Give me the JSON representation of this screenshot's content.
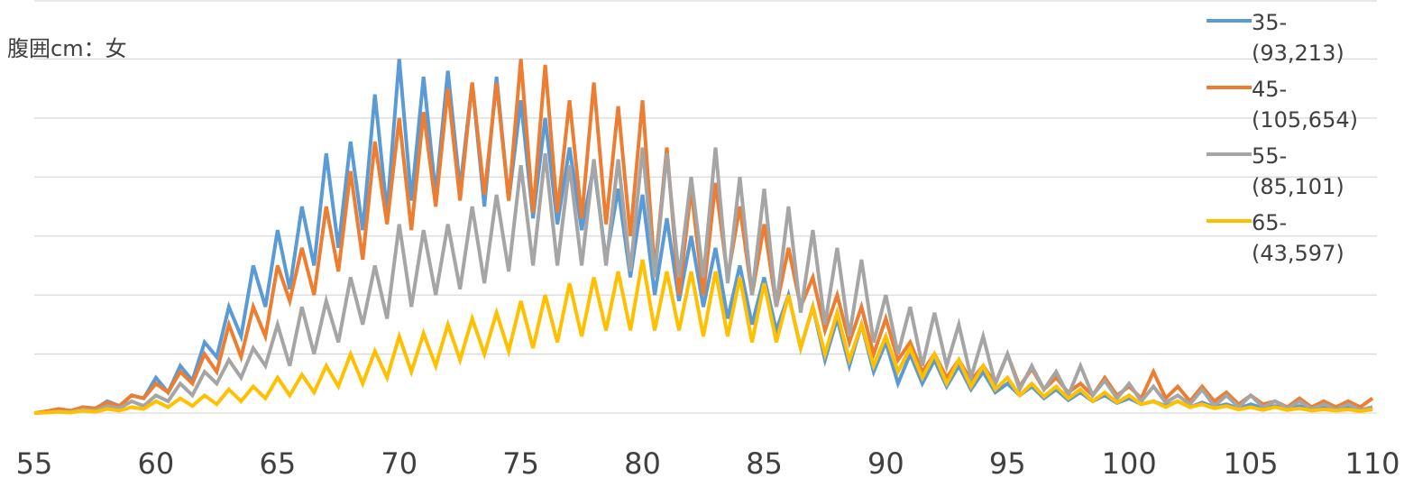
{
  "chart_data": {
    "type": "line",
    "title": "腹囲cm：女",
    "x": [
      55,
      55.5,
      56,
      56.5,
      57,
      57.5,
      58,
      58.5,
      59,
      59.5,
      60,
      60.5,
      61,
      61.5,
      62,
      62.5,
      63,
      63.5,
      64,
      64.5,
      65,
      65.5,
      66,
      66.5,
      67,
      67.5,
      68,
      68.5,
      69,
      69.5,
      70,
      70.5,
      71,
      71.5,
      72,
      72.5,
      73,
      73.5,
      74,
      74.5,
      75,
      75.5,
      76,
      76.5,
      77,
      77.5,
      78,
      78.5,
      79,
      79.5,
      80,
      80.5,
      81,
      81.5,
      82,
      82.5,
      83,
      83.5,
      84,
      84.5,
      85,
      85.5,
      86,
      86.5,
      87,
      87.5,
      88,
      88.5,
      89,
      89.5,
      90,
      90.5,
      91,
      91.5,
      92,
      92.5,
      93,
      93.5,
      94,
      94.5,
      95,
      95.5,
      96,
      96.5,
      97,
      97.5,
      98,
      98.5,
      99,
      99.5,
      100,
      100.5,
      101,
      101.5,
      102,
      102.5,
      103,
      103.5,
      104,
      104.5,
      105,
      105.5,
      106,
      106.5,
      107,
      107.5,
      108,
      108.5,
      109,
      109.5,
      110
    ],
    "series": [
      {
        "name": "35- (93,213)",
        "color": "#5b9bd5",
        "values": [
          0,
          0.02,
          0.05,
          0.03,
          0.1,
          0.07,
          0.2,
          0.12,
          0.3,
          0.25,
          0.6,
          0.35,
          0.8,
          0.55,
          1.2,
          0.95,
          1.8,
          1.3,
          2.5,
          1.8,
          3.1,
          2.1,
          3.5,
          2.5,
          4.4,
          2.8,
          4.6,
          3.1,
          5.4,
          3.4,
          6.0,
          3.6,
          5.7,
          3.7,
          5.8,
          3.8,
          5.6,
          3.5,
          5.7,
          3.6,
          5.3,
          3.3,
          5.0,
          3.2,
          4.5,
          3.1,
          4.2,
          2.6,
          3.8,
          2.3,
          3.7,
          2.0,
          3.3,
          1.9,
          3.0,
          1.8,
          2.8,
          1.6,
          2.5,
          1.5,
          2.3,
          1.4,
          2.0,
          1.1,
          1.8,
          0.9,
          1.6,
          0.8,
          1.5,
          0.7,
          1.2,
          0.5,
          1.0,
          0.5,
          0.9,
          0.45,
          0.8,
          0.4,
          0.7,
          0.35,
          0.5,
          0.3,
          0.45,
          0.25,
          0.4,
          0.22,
          0.35,
          0.2,
          0.3,
          0.17,
          0.25,
          0.15,
          0.2,
          0.12,
          0.2,
          0.1,
          0.18,
          0.1,
          0.15,
          0.08,
          0.15,
          0.08,
          0.12,
          0.07,
          0.12,
          0.06,
          0.1,
          0.06,
          0.1,
          0.05,
          0.1
        ]
      },
      {
        "name": "45- (105,654)",
        "color": "#ed7d31",
        "values": [
          0,
          0.03,
          0.07,
          0.04,
          0.1,
          0.08,
          0.18,
          0.12,
          0.3,
          0.25,
          0.5,
          0.35,
          0.7,
          0.5,
          1.0,
          0.7,
          1.5,
          0.95,
          1.8,
          1.3,
          2.5,
          1.9,
          2.8,
          2.0,
          3.5,
          2.4,
          4.1,
          2.6,
          4.6,
          3.2,
          5.0,
          3.1,
          5.1,
          3.5,
          5.5,
          3.6,
          5.6,
          3.7,
          5.6,
          3.6,
          6.0,
          3.4,
          5.9,
          3.4,
          5.3,
          3.3,
          5.6,
          3.2,
          5.2,
          3.0,
          5.3,
          2.4,
          4.5,
          2.0,
          3.8,
          2.0,
          3.9,
          2.3,
          3.5,
          2.0,
          3.2,
          1.8,
          2.8,
          1.8,
          2.3,
          1.4,
          2.0,
          1.2,
          1.8,
          1.0,
          1.6,
          0.9,
          1.2,
          0.7,
          1.0,
          0.6,
          0.9,
          0.55,
          0.8,
          0.5,
          1.0,
          0.45,
          0.75,
          0.4,
          0.6,
          0.35,
          0.5,
          0.3,
          0.6,
          0.3,
          0.45,
          0.25,
          0.7,
          0.25,
          0.45,
          0.2,
          0.45,
          0.2,
          0.35,
          0.15,
          0.3,
          0.15,
          0.2,
          0.1,
          0.25,
          0.1,
          0.2,
          0.1,
          0.2,
          0.1,
          0.25
        ]
      },
      {
        "name": "55- (85,101)",
        "color": "#a5a5a5",
        "values": [
          0,
          0.01,
          0.03,
          0.02,
          0.06,
          0.04,
          0.12,
          0.08,
          0.2,
          0.12,
          0.3,
          0.2,
          0.5,
          0.3,
          0.7,
          0.5,
          0.9,
          0.6,
          1.1,
          0.8,
          1.5,
          0.8,
          1.8,
          1.0,
          1.9,
          1.2,
          2.3,
          1.5,
          2.5,
          1.6,
          3.2,
          1.8,
          3.1,
          2.0,
          3.2,
          2.1,
          3.5,
          2.2,
          3.7,
          2.4,
          4.2,
          2.5,
          4.4,
          2.5,
          4.2,
          2.5,
          4.3,
          2.5,
          4.3,
          2.4,
          4.5,
          2.3,
          4.4,
          2.3,
          4.0,
          2.3,
          4.5,
          2.2,
          4.0,
          2.0,
          3.8,
          1.8,
          3.5,
          1.7,
          3.1,
          1.5,
          2.8,
          1.3,
          2.6,
          1.2,
          2.0,
          1.0,
          1.8,
          0.8,
          1.7,
          0.8,
          1.5,
          0.6,
          1.3,
          0.5,
          1.0,
          0.4,
          0.8,
          0.4,
          0.7,
          0.3,
          0.8,
          0.3,
          0.55,
          0.25,
          0.5,
          0.2,
          0.45,
          0.18,
          0.3,
          0.15,
          0.4,
          0.12,
          0.3,
          0.1,
          0.3,
          0.1,
          0.2,
          0.08,
          0.2,
          0.07,
          0.15,
          0.06,
          0.15,
          0.05,
          0.1
        ]
      },
      {
        "name": "65- (43,597)",
        "color": "#ffc000",
        "values": [
          0,
          0.01,
          0.02,
          0.01,
          0.04,
          0.02,
          0.07,
          0.04,
          0.1,
          0.07,
          0.2,
          0.1,
          0.25,
          0.12,
          0.3,
          0.15,
          0.4,
          0.2,
          0.45,
          0.25,
          0.6,
          0.3,
          0.65,
          0.35,
          0.8,
          0.45,
          1.0,
          0.5,
          1.05,
          0.6,
          1.3,
          0.7,
          1.35,
          0.8,
          1.5,
          0.9,
          1.6,
          1.0,
          1.7,
          1.05,
          1.9,
          1.1,
          2.0,
          1.2,
          2.2,
          1.3,
          2.3,
          1.4,
          2.4,
          1.4,
          2.6,
          1.4,
          2.4,
          1.4,
          2.4,
          1.3,
          2.4,
          1.3,
          2.3,
          1.2,
          2.2,
          1.2,
          2.0,
          1.1,
          1.8,
          1.0,
          1.7,
          0.9,
          1.5,
          0.8,
          1.3,
          0.7,
          1.1,
          0.6,
          1.0,
          0.5,
          0.9,
          0.45,
          0.8,
          0.4,
          0.6,
          0.3,
          0.5,
          0.28,
          0.45,
          0.25,
          0.4,
          0.2,
          0.35,
          0.18,
          0.3,
          0.15,
          0.2,
          0.1,
          0.2,
          0.1,
          0.15,
          0.08,
          0.12,
          0.06,
          0.1,
          0.05,
          0.1,
          0.05,
          0.08,
          0.04,
          0.06,
          0.04,
          0.06,
          0.03,
          0.06
        ]
      }
    ],
    "xlim": [
      55,
      110
    ],
    "xticks": [
      55,
      60,
      65,
      70,
      75,
      80,
      85,
      90,
      95,
      100,
      105,
      110
    ],
    "ylim": [
      0,
      7
    ],
    "yticks": [
      0,
      1,
      2,
      3,
      4,
      5,
      6,
      7
    ],
    "grid": true,
    "legend": "right"
  }
}
